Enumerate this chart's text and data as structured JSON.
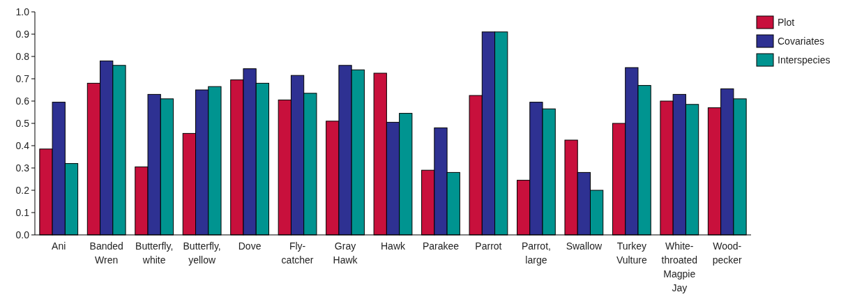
{
  "chart_data": {
    "type": "bar",
    "categories": [
      "Ani",
      "Banded Wren",
      "Butterfly, white",
      "Butterfly, yellow",
      "Dove",
      "Fly-catcher",
      "Gray Hawk",
      "Hawk",
      "Parakee",
      "Parrot",
      "Parrot, large",
      "Swallow",
      "Turkey Vulture",
      "White-throated Magpie Jay",
      "Wood-pecker"
    ],
    "series": [
      {
        "name": "Plot",
        "color": "#c8103c",
        "values": [
          0.385,
          0.68,
          0.305,
          0.455,
          0.695,
          0.605,
          0.51,
          0.725,
          0.29,
          0.625,
          0.245,
          0.425,
          0.5,
          0.6,
          0.57
        ]
      },
      {
        "name": "Covariates",
        "color": "#2e3192",
        "values": [
          0.595,
          0.78,
          0.63,
          0.65,
          0.745,
          0.715,
          0.76,
          0.505,
          0.48,
          0.91,
          0.595,
          0.28,
          0.75,
          0.63,
          0.655
        ]
      },
      {
        "name": "Interspecies",
        "color": "#009490",
        "values": [
          0.32,
          0.76,
          0.61,
          0.665,
          0.68,
          0.635,
          0.74,
          0.545,
          0.28,
          0.91,
          0.565,
          0.2,
          0.67,
          0.585,
          0.61
        ]
      }
    ],
    "ylim": [
      0,
      1.0
    ],
    "yticks": [
      {
        "value": 0,
        "label": "0.0"
      },
      0.1,
      0.2,
      0.3,
      0.4,
      0.5,
      0.6,
      0.7,
      0.8,
      0.9,
      {
        "value": 1,
        "label": "1.0"
      }
    ],
    "grid": false,
    "legend": "top right"
  }
}
